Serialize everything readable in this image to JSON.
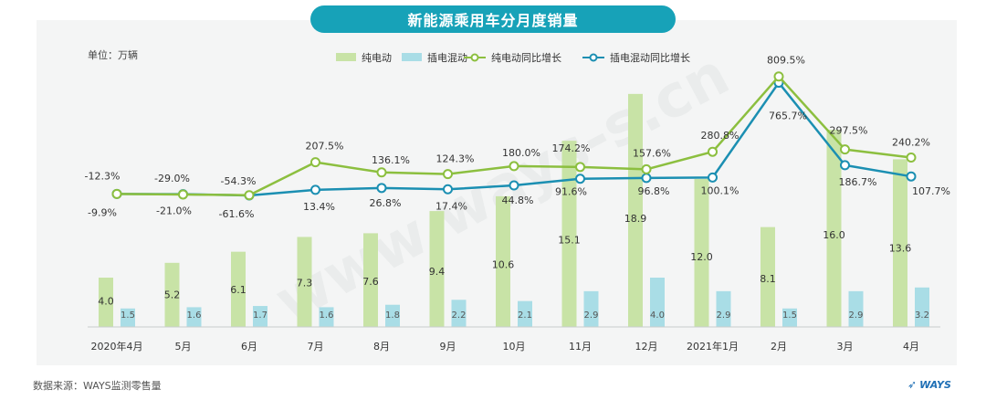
{
  "title": "新能源乘用车分月度销量",
  "unit_label": "单位：万辆",
  "source": "数据来源：WAYS监测零售量",
  "logo_text": "WAYS",
  "watermark_text": "www.ways-s.cn",
  "colors": {
    "title_bg": "#17a2b8",
    "bev_bar": "#c8e3a6",
    "phev_bar": "#a9dde6",
    "bev_line": "#8cbf3f",
    "phev_line": "#1b8fb2"
  },
  "chart_data": {
    "type": "bar+line",
    "categories": [
      "2020年4月",
      "5月",
      "6月",
      "7月",
      "8月",
      "9月",
      "10月",
      "11月",
      "12月",
      "2021年1月",
      "2月",
      "3月",
      "4月"
    ],
    "legend": [
      "纯电动",
      "插电混动",
      "纯电动同比增长",
      "插电混动同比增长"
    ],
    "legend_position": "top",
    "series": [
      {
        "name": "纯电动",
        "kind": "bar",
        "values": [
          4.0,
          5.2,
          6.1,
          7.3,
          7.6,
          9.4,
          10.6,
          15.1,
          18.9,
          12.0,
          8.1,
          16.0,
          13.6
        ]
      },
      {
        "name": "插电混动",
        "kind": "bar",
        "values": [
          1.5,
          1.6,
          1.7,
          1.6,
          1.8,
          2.2,
          2.1,
          2.9,
          4.0,
          2.9,
          1.5,
          2.9,
          3.2
        ]
      },
      {
        "name": "纯电动同比增长",
        "kind": "line",
        "values": [
          "-12.3%",
          "-29.0%",
          "-54.3%",
          "207.5%",
          "136.1%",
          "124.3%",
          "180.0%",
          "174.2%",
          "157.6%",
          "280.8%",
          "809.5%",
          "297.5%",
          "240.2%"
        ]
      },
      {
        "name": "插电混动同比增长",
        "kind": "line",
        "values": [
          "-9.9%",
          "-21.0%",
          "-61.6%",
          "13.4%",
          "26.8%",
          "17.4%",
          "44.8%",
          "91.6%",
          "96.8%",
          "100.1%",
          "765.7%",
          "186.7%",
          "107.7%"
        ]
      }
    ],
    "bar_ylim": [
      0,
      20
    ],
    "line_ylim_percent": [
      -900,
      900
    ],
    "grid": false
  }
}
